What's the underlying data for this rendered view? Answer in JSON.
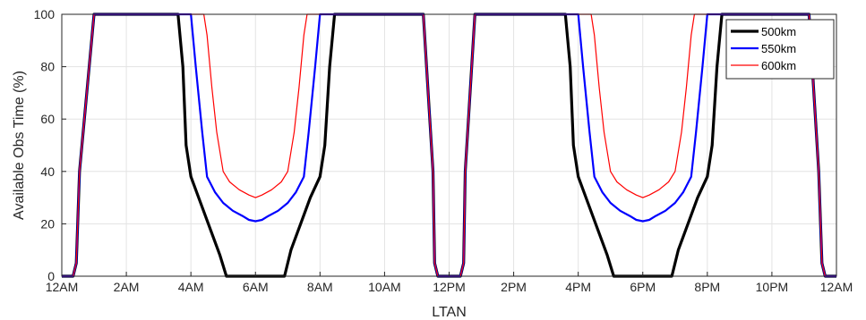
{
  "chart_data": {
    "type": "line",
    "xlabel": "LTAN",
    "ylabel": "Available Obs Time (%)",
    "xlim": [
      0,
      24
    ],
    "ylim": [
      0,
      100
    ],
    "grid": true,
    "legend_position": "top-right",
    "x_ticks": [
      {
        "value": 0,
        "label": "12AM"
      },
      {
        "value": 2,
        "label": "2AM"
      },
      {
        "value": 4,
        "label": "4AM"
      },
      {
        "value": 6,
        "label": "6AM"
      },
      {
        "value": 8,
        "label": "8AM"
      },
      {
        "value": 10,
        "label": "10AM"
      },
      {
        "value": 12,
        "label": "12PM"
      },
      {
        "value": 14,
        "label": "2PM"
      },
      {
        "value": 16,
        "label": "4PM"
      },
      {
        "value": 18,
        "label": "6PM"
      },
      {
        "value": 20,
        "label": "8PM"
      },
      {
        "value": 22,
        "label": "10PM"
      },
      {
        "value": 24,
        "label": "12AM"
      }
    ],
    "y_ticks": [
      0,
      20,
      40,
      60,
      80,
      100
    ],
    "series": [
      {
        "name": "500km",
        "color": "#000000",
        "x": [
          0,
          0.35,
          0.45,
          0.55,
          0.7,
          0.85,
          1.0,
          3.6,
          3.75,
          3.85,
          4.0,
          4.3,
          4.6,
          4.9,
          5.1,
          6.9,
          7.1,
          7.4,
          7.7,
          8.0,
          8.15,
          8.3,
          8.45,
          11.2,
          11.3,
          11.4,
          11.5,
          11.55,
          11.65,
          12.35,
          12.45,
          12.5,
          12.6,
          12.7,
          12.8,
          12.9,
          15.6,
          15.75,
          15.85,
          16.0,
          16.3,
          16.6,
          16.9,
          17.1,
          18.9,
          19.1,
          19.4,
          19.7,
          20.0,
          20.15,
          20.3,
          20.45,
          23.15,
          23.25,
          23.35,
          23.45,
          23.55,
          23.65,
          24
        ],
        "y": [
          0,
          0,
          5,
          40,
          60,
          80,
          100,
          100,
          80,
          50,
          38,
          28,
          18,
          8,
          0,
          0,
          10,
          20,
          30,
          38,
          50,
          80,
          100,
          100,
          80,
          60,
          40,
          5,
          0,
          0,
          5,
          40,
          60,
          80,
          100,
          100,
          100,
          80,
          50,
          38,
          28,
          18,
          8,
          0,
          0,
          10,
          20,
          30,
          38,
          50,
          80,
          100,
          100,
          80,
          60,
          40,
          5,
          0,
          0
        ]
      },
      {
        "name": "550km",
        "color": "#0000ff",
        "x": [
          0,
          0.35,
          0.45,
          0.55,
          0.7,
          0.85,
          1.0,
          4.0,
          4.15,
          4.35,
          4.5,
          4.75,
          5.0,
          5.3,
          5.6,
          5.8,
          6.0,
          6.2,
          6.4,
          6.7,
          7.0,
          7.25,
          7.5,
          7.65,
          7.85,
          8.0,
          11.2,
          11.3,
          11.4,
          11.5,
          11.55,
          11.65,
          12.35,
          12.45,
          12.5,
          12.6,
          12.7,
          12.8,
          12.9,
          16.0,
          16.15,
          16.35,
          16.5,
          16.75,
          17.0,
          17.3,
          17.6,
          17.8,
          18.0,
          18.2,
          18.4,
          18.7,
          19.0,
          19.25,
          19.5,
          19.65,
          19.85,
          20.0,
          23.15,
          23.25,
          23.35,
          23.45,
          23.55,
          23.65,
          24
        ],
        "y": [
          0,
          0,
          5,
          40,
          60,
          80,
          100,
          100,
          80,
          55,
          38,
          32,
          28,
          25,
          23,
          21.5,
          21,
          21.5,
          23,
          25,
          28,
          32,
          38,
          55,
          80,
          100,
          100,
          80,
          60,
          40,
          5,
          0,
          0,
          5,
          40,
          60,
          80,
          100,
          100,
          100,
          80,
          55,
          38,
          32,
          28,
          25,
          23,
          21.5,
          21,
          21.5,
          23,
          25,
          28,
          32,
          38,
          55,
          80,
          100,
          100,
          80,
          60,
          40,
          5,
          0,
          0
        ]
      },
      {
        "name": "600km",
        "color": "#ff0000",
        "x": [
          0,
          0.35,
          0.45,
          0.55,
          0.7,
          0.85,
          1.0,
          4.4,
          4.5,
          4.65,
          4.8,
          5.0,
          5.2,
          5.5,
          5.8,
          6.0,
          6.2,
          6.5,
          6.8,
          7.0,
          7.2,
          7.35,
          7.5,
          7.6,
          11.2,
          11.3,
          11.4,
          11.5,
          11.55,
          11.65,
          12.35,
          12.45,
          12.5,
          12.6,
          12.7,
          12.8,
          12.9,
          16.4,
          16.5,
          16.65,
          16.8,
          17.0,
          17.2,
          17.5,
          17.8,
          18.0,
          18.2,
          18.5,
          18.8,
          19.0,
          19.2,
          19.35,
          19.5,
          19.6,
          23.15,
          23.25,
          23.35,
          23.45,
          23.55,
          23.65,
          24
        ],
        "y": [
          0,
          0,
          5,
          40,
          60,
          80,
          100,
          100,
          92,
          72,
          55,
          40,
          36,
          33,
          31,
          30,
          31,
          33,
          36,
          40,
          55,
          72,
          92,
          100,
          100,
          80,
          60,
          40,
          5,
          0,
          0,
          5,
          40,
          60,
          80,
          100,
          100,
          100,
          92,
          72,
          55,
          40,
          36,
          33,
          31,
          30,
          31,
          33,
          36,
          40,
          55,
          72,
          92,
          100,
          100,
          80,
          60,
          40,
          5,
          0,
          0
        ]
      }
    ]
  }
}
